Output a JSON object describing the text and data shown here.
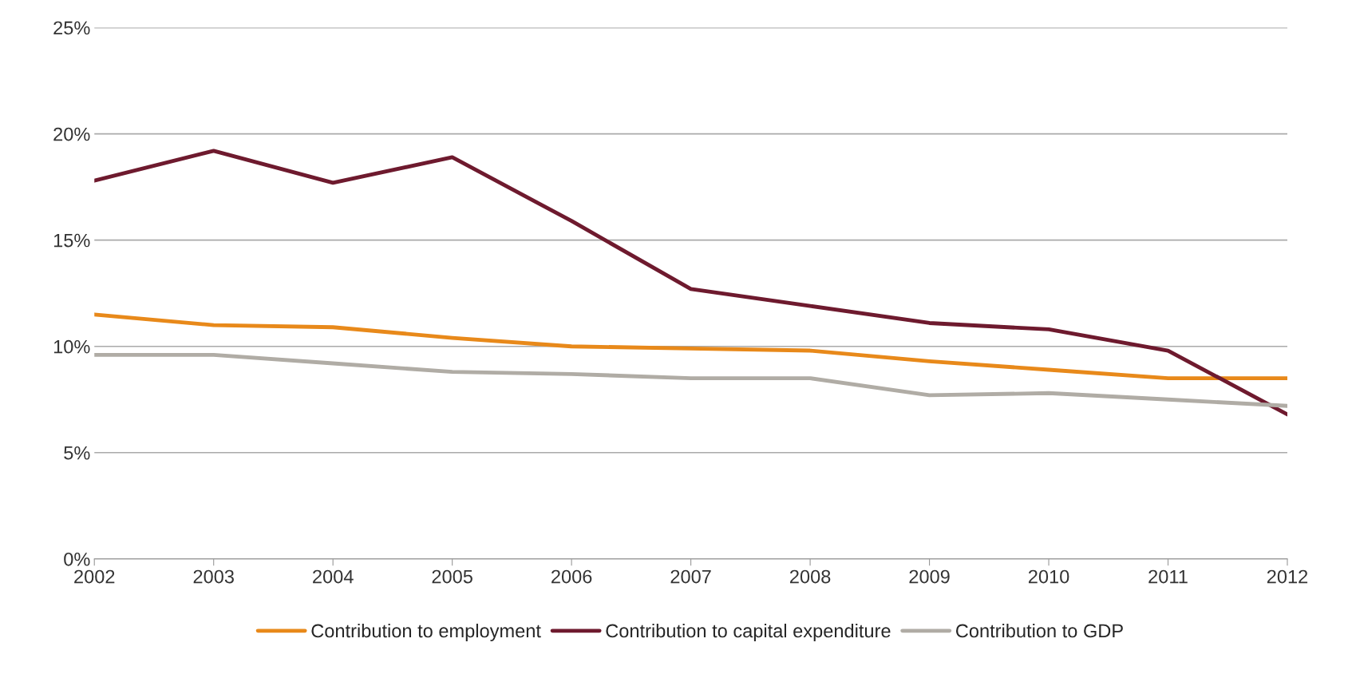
{
  "chart_data": {
    "type": "line",
    "categories": [
      "2002",
      "2003",
      "2004",
      "2005",
      "2006",
      "2007",
      "2008",
      "2009",
      "2010",
      "2011",
      "2012"
    ],
    "series": [
      {
        "name": "Contribution to employment",
        "color": "#e8891a",
        "values": [
          11.5,
          11.0,
          10.9,
          10.4,
          10.0,
          9.9,
          9.8,
          9.3,
          8.9,
          8.5,
          8.5
        ]
      },
      {
        "name": "Contribution to capital expenditure",
        "color": "#6e1a2e",
        "values": [
          17.8,
          19.2,
          17.7,
          18.9,
          15.9,
          12.7,
          11.9,
          11.1,
          10.8,
          9.8,
          6.8
        ]
      },
      {
        "name": "Contribution to GDP",
        "color": "#b0aca5",
        "values": [
          9.6,
          9.6,
          9.2,
          8.8,
          8.7,
          8.5,
          8.5,
          7.7,
          7.8,
          7.5,
          7.2
        ]
      }
    ],
    "ylim": [
      0,
      25
    ],
    "yticks": [
      {
        "value": 0,
        "label": "0%"
      },
      {
        "value": 5,
        "label": "5%"
      },
      {
        "value": 10,
        "label": "10%"
      },
      {
        "value": 15,
        "label": "15%"
      },
      {
        "value": 20,
        "label": "20%"
      },
      {
        "value": 25,
        "label": "25%"
      }
    ],
    "grid": "y",
    "legend": "bottom",
    "marker": "none",
    "line_style": "solid"
  }
}
